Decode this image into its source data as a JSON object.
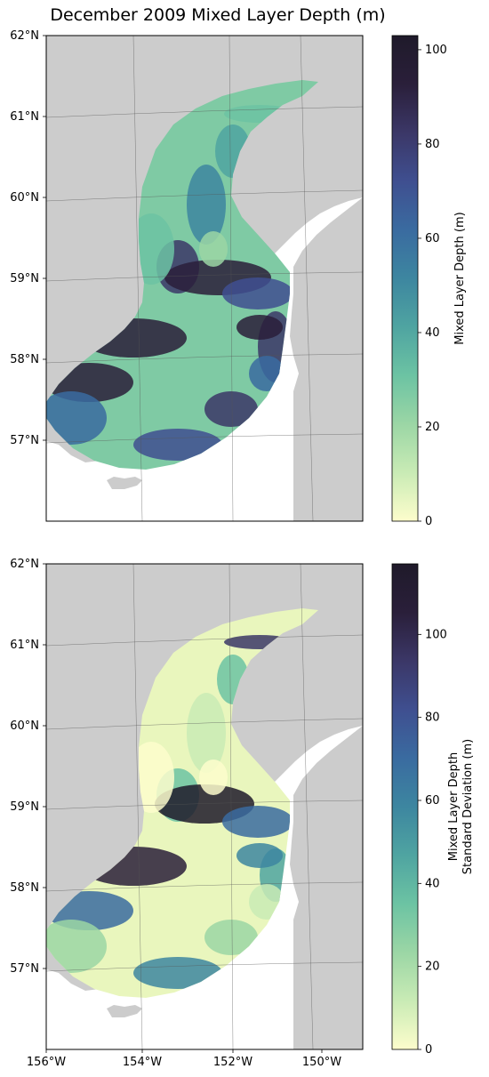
{
  "title": "December 2009 Mixed Layer Depth (m)",
  "colors": {
    "land": "#cccccc",
    "colormap": [
      "#fdfdcc",
      "#c9ebb5",
      "#9bd6a5",
      "#6cc3a3",
      "#4fa4a1",
      "#3d86a0",
      "#3a6ba0",
      "#3f4f90",
      "#3b3767",
      "#2a1f3a",
      "#1f1a2a"
    ]
  },
  "chart_data": [
    {
      "type": "heatmap",
      "name": "top-panel",
      "lat_ticks": [
        "62°N",
        "61°N",
        "60°N",
        "59°N",
        "58°N",
        "57°N"
      ],
      "lon_ticks": [],
      "colorbar": {
        "label": "Mixed Layer Depth (m)",
        "min": 0,
        "max": 103,
        "ticks": [
          "0",
          "20",
          "40",
          "60",
          "80",
          "100"
        ],
        "tick_values": [
          0,
          20,
          40,
          60,
          80,
          100
        ]
      }
    },
    {
      "type": "heatmap",
      "name": "bottom-panel",
      "lat_ticks": [
        "62°N",
        "61°N",
        "60°N",
        "59°N",
        "58°N",
        "57°N"
      ],
      "lon_ticks": [
        "156°W",
        "154°W",
        "152°W",
        "150°W"
      ],
      "colorbar": {
        "label_lines": [
          "Mixed Layer Depth",
          "Standard Deviation (m)"
        ],
        "min": 0,
        "max": 117,
        "ticks": [
          "0",
          "20",
          "40",
          "60",
          "80",
          "100"
        ],
        "tick_values": [
          0,
          20,
          40,
          60,
          80,
          100
        ]
      }
    }
  ]
}
